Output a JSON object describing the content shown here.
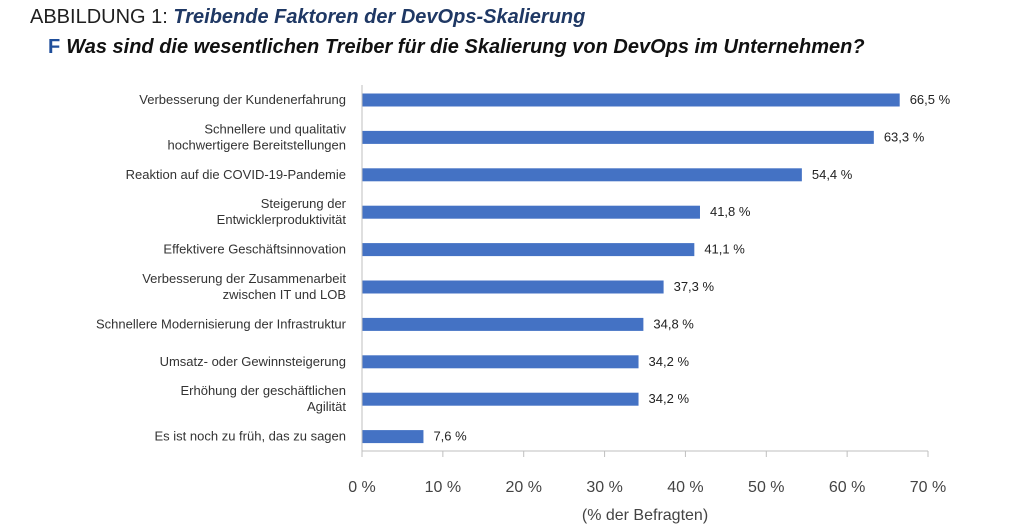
{
  "heading": {
    "figure_label": "ABBILDUNG 1:",
    "figure_title": "Treibende Faktoren der DevOps-Skalierung"
  },
  "question": {
    "marker": "F",
    "text": "Was sind die wesentlichen Treiber für die Skalierung von DevOps im Unternehmen?"
  },
  "chart_data": {
    "type": "bar",
    "orientation": "horizontal",
    "title": "Was sind die wesentlichen Treiber für die Skalierung von DevOps im Unternehmen?",
    "categories": [
      [
        "Verbesserung der Kundenerfahrung"
      ],
      [
        "Schnellere und qualitativ",
        "hochwertigere Bereitstellungen"
      ],
      [
        "Reaktion auf die COVID-19-Pandemie"
      ],
      [
        "Steigerung der",
        "Entwicklerproduktivität"
      ],
      [
        "Effektivere Geschäftsinnovation"
      ],
      [
        "Verbesserung der Zusammenarbeit",
        "zwischen IT und LOB"
      ],
      [
        "Schnellere Modernisierung der Infrastruktur"
      ],
      [
        "Umsatz- oder Gewinnsteigerung"
      ],
      [
        "Erhöhung der geschäftlichen",
        "Agilität"
      ],
      [
        "Es ist noch zu früh, das zu sagen"
      ]
    ],
    "values": [
      66.5,
      63.3,
      54.4,
      41.8,
      41.1,
      37.3,
      34.8,
      34.2,
      34.2,
      7.6
    ],
    "value_labels": [
      "66,5 %",
      "63,3 %",
      "54,4 %",
      "41,8 %",
      "41,1 %",
      "37,3 %",
      "34,8 %",
      "34,2 %",
      "34,2 %",
      "7,6 %"
    ],
    "xlim": [
      0,
      70
    ],
    "xticks": [
      0,
      10,
      20,
      30,
      40,
      50,
      60,
      70
    ],
    "xtick_labels": [
      "0 %",
      "10 %",
      "20 %",
      "30 %",
      "40 %",
      "50 %",
      "60 %",
      "70 %"
    ],
    "xlabel": "(% der Befragten)",
    "ylabel": "",
    "bar_color": "#4472c4",
    "grid": false,
    "legend": "none"
  }
}
